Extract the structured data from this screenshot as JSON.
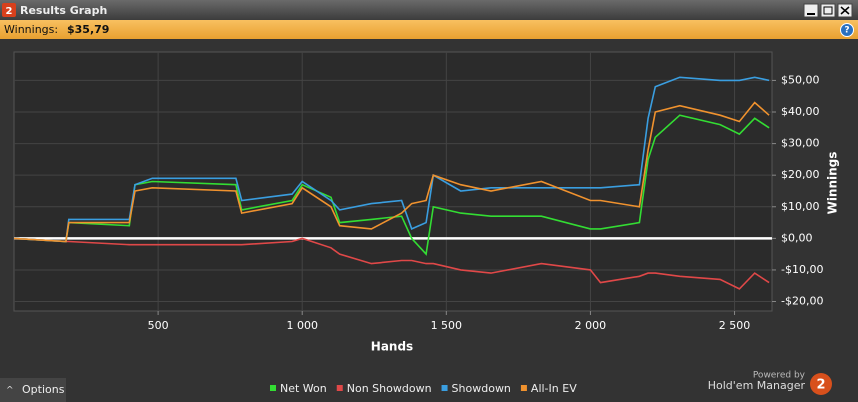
{
  "window": {
    "title": "Results Graph",
    "icon": "2",
    "summary_label": "Winnings:",
    "summary_value": "$35,79",
    "options": "Options",
    "powered_by": "Powered by",
    "brand": "Hold'em Manager",
    "brand_logo": "2"
  },
  "chart_data": {
    "type": "line",
    "x_label": "Hands",
    "y_label": "Winnings",
    "x": [
      0,
      180,
      190,
      400,
      420,
      480,
      770,
      790,
      965,
      1000,
      1100,
      1130,
      1240,
      1345,
      1380,
      1430,
      1455,
      1550,
      1655,
      1830,
      2000,
      2035,
      2170,
      2200,
      2225,
      2310,
      2450,
      2517,
      2570,
      2620
    ],
    "series": [
      {
        "name": "Net Won",
        "color": "#33dd33",
        "values": [
          0,
          -1,
          5,
          4,
          17,
          18,
          17,
          9,
          12,
          17,
          13,
          5,
          6,
          7,
          0,
          -5,
          10,
          8,
          7,
          7,
          3,
          3,
          5,
          25,
          32,
          39,
          36,
          33,
          38,
          35
        ]
      },
      {
        "name": "Non Showdown",
        "color": "#e04848",
        "values": [
          0,
          -1,
          -1,
          -2,
          -2,
          -2,
          -2,
          -2,
          -1,
          0,
          -3,
          -5,
          -8,
          -7,
          -7,
          -8,
          -8,
          -10,
          -11,
          -8,
          -10,
          -14,
          -12,
          -11,
          -11,
          -12,
          -13,
          -16,
          -11,
          -14
        ]
      },
      {
        "name": "Showdown",
        "color": "#3a9ee0",
        "values": [
          0,
          -1,
          6,
          6,
          17,
          19,
          19,
          12,
          14,
          18,
          12,
          9,
          11,
          12,
          3,
          5,
          20,
          15,
          16,
          16,
          16,
          16,
          17,
          38,
          48,
          51,
          50,
          50,
          51,
          50
        ]
      },
      {
        "name": "All-In EV",
        "color": "#f0922e",
        "values": [
          0,
          -1,
          5,
          5,
          15,
          16,
          15,
          8,
          11,
          16,
          10,
          4,
          3,
          8,
          11,
          12,
          20,
          17,
          15,
          18,
          12,
          12,
          10,
          28,
          40,
          42,
          39,
          37,
          43,
          39
        ]
      }
    ],
    "xlim": [
      0,
      2630
    ],
    "ylim": [
      -23,
      59
    ],
    "xticks": [
      500,
      {
        "value": 1000,
        "label": "1 000"
      },
      {
        "value": 1500,
        "label": "1 500"
      },
      {
        "value": 2000,
        "label": "2 000"
      },
      {
        "value": 2500,
        "label": "2 500"
      }
    ],
    "yticks": [
      {
        "value": -20,
        "label": "-$20,00"
      },
      {
        "value": -10,
        "label": "-$10,00"
      },
      {
        "value": 0,
        "label": "$0,00"
      },
      {
        "value": 10,
        "label": "$10,00"
      },
      {
        "value": 20,
        "label": "$20,00"
      },
      {
        "value": 30,
        "label": "$30,00"
      },
      {
        "value": 40,
        "label": "$40,00"
      },
      {
        "value": 50,
        "label": "$50,00"
      }
    ],
    "reference_line": 0,
    "grid": true,
    "legend": "bottom"
  }
}
